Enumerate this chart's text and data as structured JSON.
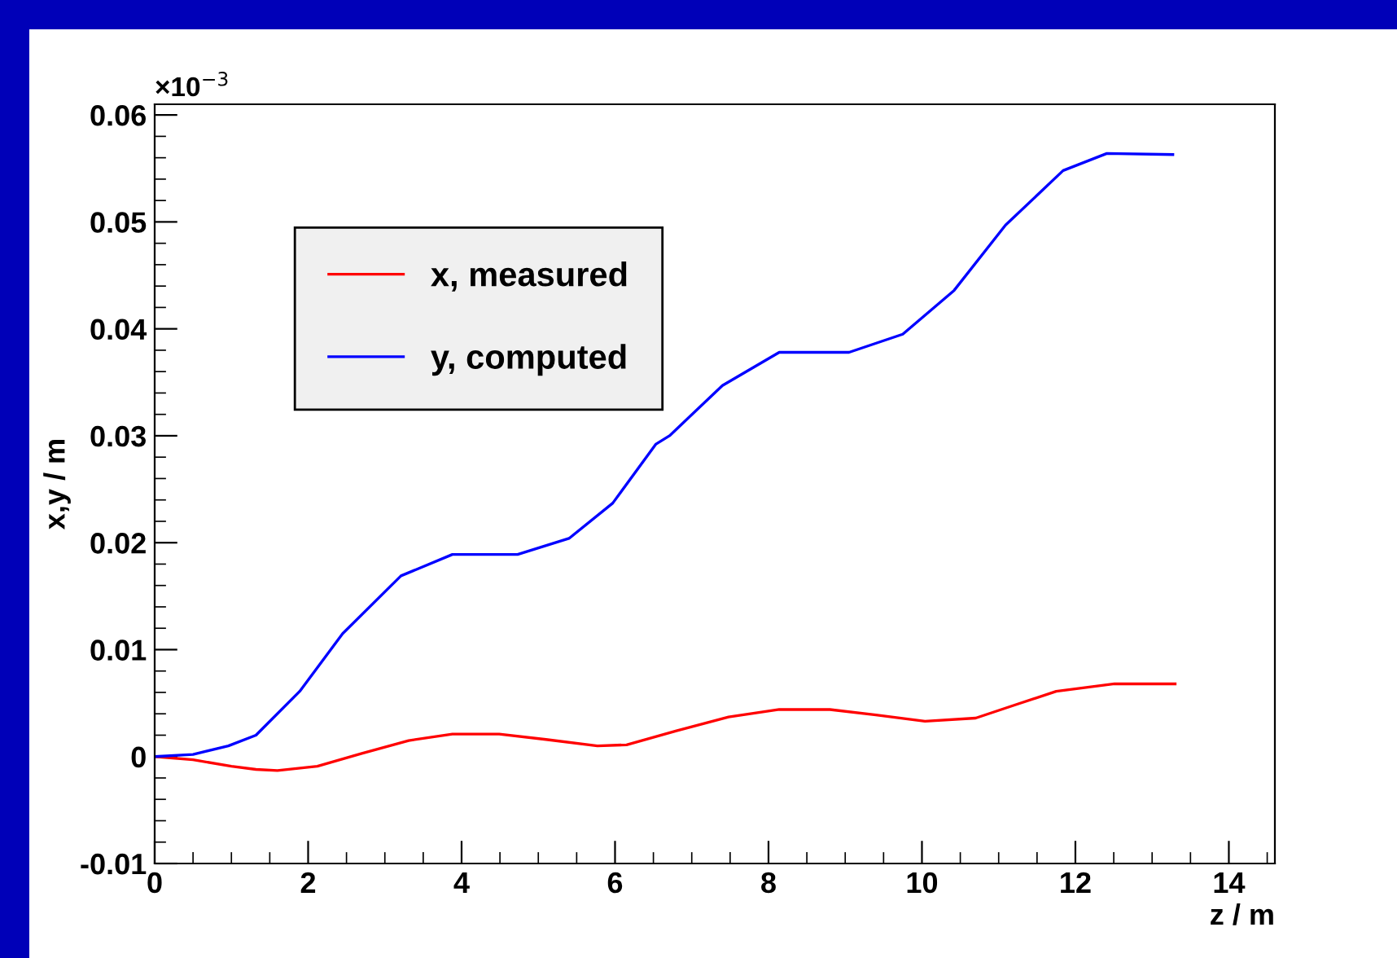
{
  "chart_data": {
    "type": "line",
    "xlabel": "z / m",
    "ylabel": "x,y / m",
    "annotations": [
      "×10$^{−3}$"
    ],
    "series": [
      {
        "name": "x, measured",
        "color": "#ff0000",
        "x": [
          0,
          0.5,
          1.0,
          1.32,
          1.6,
          2.12,
          2.7,
          3.31,
          3.88,
          4.49,
          5.1,
          5.77,
          6.15,
          6.8,
          7.48,
          8.14,
          8.8,
          9.4,
          10.04,
          10.7,
          11.2,
          11.75,
          12.51,
          13.3
        ],
        "values": [
          0,
          -0.0003,
          -0.0009,
          -0.0012,
          -0.0013,
          -0.0009,
          0.0003,
          0.0015,
          0.0021,
          0.0021,
          0.0016,
          0.001,
          0.0011,
          0.0024,
          0.0037,
          0.0044,
          0.0044,
          0.0039,
          0.0033,
          0.0036,
          0.0048,
          0.0061,
          0.0068,
          0.0068
        ]
      },
      {
        "name": "y, computed",
        "color": "#0000ff",
        "x": [
          0,
          0.5,
          0.96,
          1.32,
          1.89,
          2.45,
          3.21,
          3.88,
          4.3,
          4.73,
          5.4,
          5.97,
          6.53,
          6.71,
          7.4,
          8.14,
          9.05,
          9.75,
          10.42,
          11.09,
          11.84,
          12.41,
          13.27
        ],
        "values": [
          0,
          0.0002,
          0.001,
          0.002,
          0.0061,
          0.0115,
          0.0169,
          0.0189,
          0.0189,
          0.0189,
          0.0204,
          0.0237,
          0.0292,
          0.03,
          0.0347,
          0.0378,
          0.0378,
          0.0395,
          0.0436,
          0.0497,
          0.0548,
          0.0564,
          0.0563
        ]
      }
    ],
    "xlim": [
      0,
      14.6
    ],
    "xticks": [
      0,
      2,
      4,
      6,
      8,
      10,
      12,
      14
    ],
    "ylim": [
      -0.01,
      0.061
    ],
    "yticks": [
      -0.01,
      0,
      0.01,
      0.02,
      0.03,
      0.04,
      0.05,
      0.06
    ],
    "grid": false,
    "legend": "top left",
    "marker": "none",
    "line_style": "solid"
  }
}
